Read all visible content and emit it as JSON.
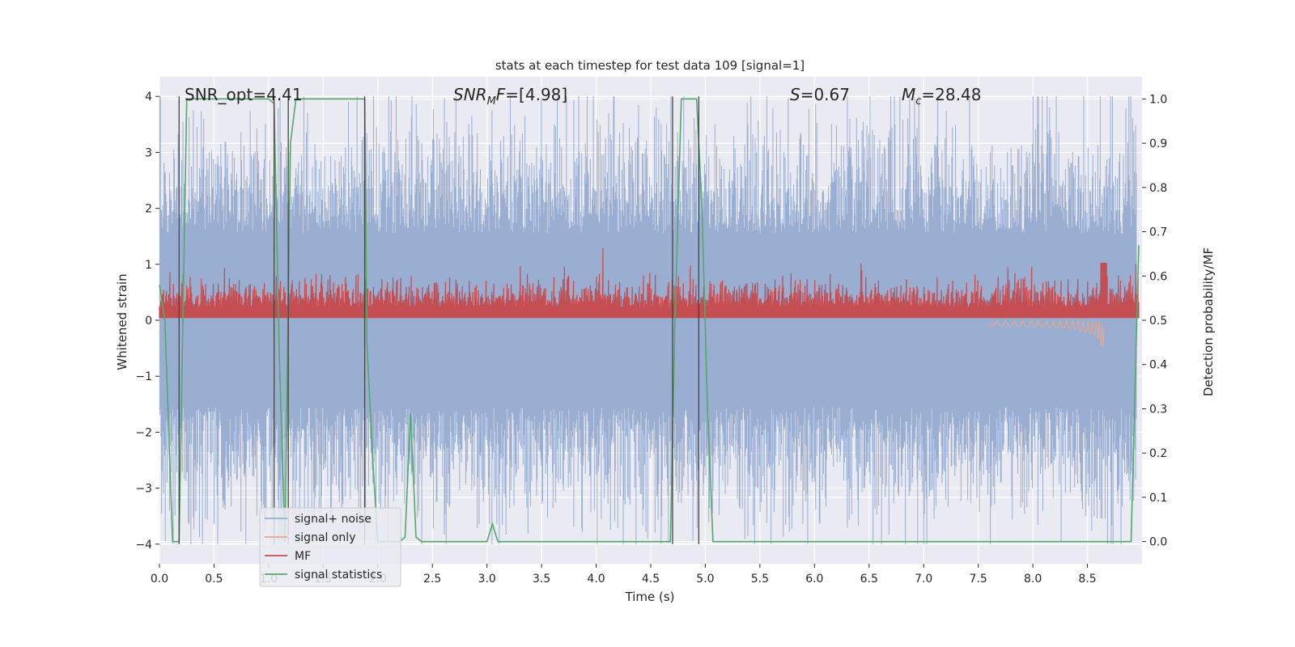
{
  "chart_data": {
    "type": "line",
    "title": "stats at each timestep for test data 109 [signal=1]",
    "xlabel": "Time (s)",
    "ylabel": "Whitened strain",
    "y2label": "Detection probability/MF",
    "xlim": [
      0.0,
      9.0
    ],
    "ylim": [
      -4.35,
      4.35
    ],
    "y2lim": [
      -0.05,
      1.05
    ],
    "x_ticks": [
      "0.0",
      "0.5",
      "1.0",
      "1.5",
      "2.0",
      "2.5",
      "3.0",
      "3.5",
      "4.0",
      "4.5",
      "5.0",
      "5.5",
      "6.0",
      "6.5",
      "7.0",
      "7.5",
      "8.0",
      "8.5"
    ],
    "y_ticks": [
      "−4",
      "−3",
      "−2",
      "−1",
      "0",
      "1",
      "2",
      "3",
      "4"
    ],
    "y2_ticks": [
      "0.0",
      "0.1",
      "0.2",
      "0.3",
      "0.4",
      "0.5",
      "0.6",
      "0.7",
      "0.8",
      "0.9",
      "1.0"
    ],
    "grid": true,
    "legend_position": "lower-left",
    "annotations": {
      "snr_opt": "SNR_opt=4.41",
      "snr_mf_italic": "SNR",
      "snr_mf_sub": "M",
      "snr_mf_italic2": "F",
      "snr_mf_value": "=[4.98]",
      "s_italic": "S",
      "s_value": "=0.67",
      "mc_italic": "M",
      "mc_sub": "c",
      "mc_value": "=28.48"
    },
    "series": [
      {
        "name": "signal+ noise",
        "color": "#9aaed2",
        "axis": "left",
        "description_note": "dense noise, amplitude approx ±2 to ±4"
      },
      {
        "name": "signal only",
        "color": "#e8a88a",
        "axis": "left"
      },
      {
        "name": "MF",
        "color": "#c44e52",
        "axis": "right"
      },
      {
        "name": "signal statistics",
        "color": "#55a868",
        "axis": "right"
      }
    ],
    "signal_statistics": {
      "x": [
        0.0,
        0.05,
        0.12,
        0.18,
        0.25,
        0.3,
        0.5,
        1.0,
        1.05,
        1.1,
        1.15,
        1.2,
        1.25,
        1.3,
        1.5,
        1.88,
        1.9,
        1.95,
        2.0,
        2.05,
        2.1,
        2.2,
        2.25,
        2.3,
        2.35,
        2.4,
        2.5,
        3.0,
        3.05,
        3.1,
        3.15,
        3.5,
        4.68,
        4.72,
        4.78,
        4.92,
        4.97,
        5.02,
        5.07,
        5.5,
        6.0,
        7.0,
        8.0,
        8.2,
        8.6,
        8.9,
        8.97
      ],
      "y": [
        0.58,
        0.5,
        0.0,
        0.0,
        1.0,
        1.0,
        1.0,
        1.0,
        0.99,
        0.4,
        0.0,
        0.9,
        1.0,
        1.0,
        1.0,
        1.0,
        0.45,
        0.2,
        0.0,
        0.0,
        0.0,
        0.0,
        0.01,
        0.29,
        0.01,
        0.0,
        0.0,
        0.0,
        0.04,
        0.0,
        0.0,
        0.0,
        0.0,
        0.48,
        1.0,
        1.0,
        0.75,
        0.3,
        0.0,
        0.0,
        0.0,
        0.0,
        0.0,
        0.0,
        0.0,
        0.0,
        0.67
      ]
    },
    "vertical_markers": {
      "x": [
        0.18,
        1.05,
        1.18,
        1.88,
        4.7,
        4.94
      ],
      "y_top": [
        4.0,
        4.0,
        4.0,
        4.0,
        4.0,
        4.0
      ],
      "y_bottom": [
        -4.0,
        -4.0,
        -4.0,
        -4.0,
        -4.0,
        -4.0
      ]
    }
  }
}
